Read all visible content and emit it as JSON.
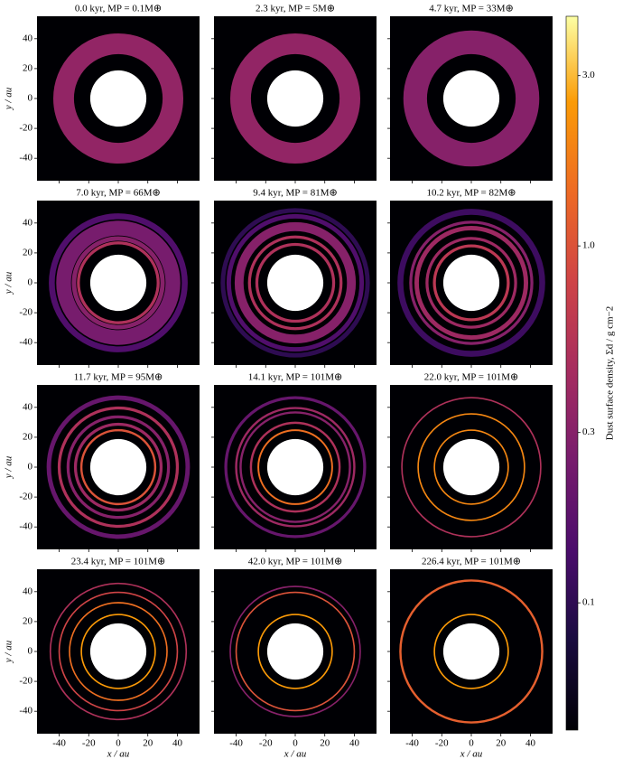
{
  "chart_data": [
    {
      "type": "image",
      "title": "0.0 kyr, MP = 0.1M⊕",
      "ylabel": "y / au",
      "xlim": [
        -55,
        55
      ],
      "ylim": [
        -55,
        55
      ],
      "xticks": [
        -40,
        -20,
        0,
        20,
        40
      ],
      "yticks": [
        -40,
        -20,
        0,
        20,
        40
      ],
      "hole_radius": 19,
      "rings": [
        {
          "r": 37,
          "width": 14,
          "density": 0.35
        }
      ]
    },
    {
      "type": "image",
      "title": "2.3 kyr, MP = 5M⊕",
      "xlim": [
        -55,
        55
      ],
      "ylim": [
        -55,
        55
      ],
      "xticks": [
        -40,
        -20,
        0,
        20,
        40
      ],
      "yticks": [
        -40,
        -20,
        0,
        20,
        40
      ],
      "hole_radius": 19,
      "rings": [
        {
          "r": 37,
          "width": 14,
          "density": 0.35
        }
      ]
    },
    {
      "type": "image",
      "title": "4.7 kyr, MP = 33M⊕",
      "xlim": [
        -55,
        55
      ],
      "ylim": [
        -55,
        55
      ],
      "xticks": [
        -40,
        -20,
        0,
        20,
        40
      ],
      "yticks": [
        -40,
        -20,
        0,
        20,
        40
      ],
      "hole_radius": 19,
      "rings": [
        {
          "r": 38,
          "width": 16,
          "density": 0.3
        }
      ]
    },
    {
      "type": "image",
      "title": "7.0 kyr, MP = 66M⊕",
      "ylabel": "y / au",
      "xlim": [
        -55,
        55
      ],
      "ylim": [
        -55,
        55
      ],
      "xticks": [
        -40,
        -20,
        0,
        20,
        40
      ],
      "yticks": [
        -40,
        -20,
        0,
        20,
        40
      ],
      "hole_radius": 19,
      "rings": [
        {
          "r": 37,
          "width": 10,
          "density": 0.25
        },
        {
          "r": 45,
          "width": 4,
          "density": 0.15
        },
        {
          "r": 30,
          "width": 3,
          "density": 0.3
        },
        {
          "r": 27,
          "width": 2,
          "density": 0.5
        }
      ]
    },
    {
      "type": "image",
      "title": "9.4 kyr, MP = 81M⊕",
      "xlim": [
        -55,
        55
      ],
      "ylim": [
        -55,
        55
      ],
      "xticks": [
        -40,
        -20,
        0,
        20,
        40
      ],
      "yticks": [
        -40,
        -20,
        0,
        20,
        40
      ],
      "hole_radius": 19,
      "rings": [
        {
          "r": 49,
          "width": 3,
          "density": 0.1
        },
        {
          "r": 45,
          "width": 3,
          "density": 0.15
        },
        {
          "r": 38,
          "width": 6,
          "density": 0.3
        },
        {
          "r": 31,
          "width": 2,
          "density": 0.5
        },
        {
          "r": 26,
          "width": 2,
          "density": 0.5
        }
      ]
    },
    {
      "type": "image",
      "title": "10.2 kyr, MP = 82M⊕",
      "xlim": [
        -55,
        55
      ],
      "ylim": [
        -55,
        55
      ],
      "xticks": [
        -40,
        -20,
        0,
        20,
        40
      ],
      "yticks": [
        -40,
        -20,
        0,
        20,
        40
      ],
      "hole_radius": 19,
      "rings": [
        {
          "r": 48,
          "width": 4,
          "density": 0.12
        },
        {
          "r": 41,
          "width": 2,
          "density": 0.3
        },
        {
          "r": 37,
          "width": 3,
          "density": 0.4
        },
        {
          "r": 30,
          "width": 2,
          "density": 0.4
        },
        {
          "r": 25,
          "width": 2,
          "density": 0.6
        }
      ]
    },
    {
      "type": "image",
      "title": "11.7 kyr, MP = 95M⊕",
      "ylabel": "y / au",
      "xlim": [
        -55,
        55
      ],
      "ylim": [
        -55,
        55
      ],
      "xticks": [
        -40,
        -20,
        0,
        20,
        40
      ],
      "yticks": [
        -40,
        -20,
        0,
        20,
        40
      ],
      "hole_radius": 19,
      "rings": [
        {
          "r": 47,
          "width": 3,
          "density": 0.2
        },
        {
          "r": 40,
          "width": 2,
          "density": 0.5
        },
        {
          "r": 34,
          "width": 2,
          "density": 0.3
        },
        {
          "r": 29,
          "width": 2,
          "density": 0.4
        },
        {
          "r": 25,
          "width": 1.5,
          "density": 1.0
        }
      ]
    },
    {
      "type": "image",
      "title": "14.1 kyr, MP = 101M⊕",
      "xlim": [
        -55,
        55
      ],
      "ylim": [
        -55,
        55
      ],
      "xticks": [
        -40,
        -20,
        0,
        20,
        40
      ],
      "yticks": [
        -40,
        -20,
        0,
        20,
        40
      ],
      "hole_radius": 19,
      "rings": [
        {
          "r": 47,
          "width": 2,
          "density": 0.2
        },
        {
          "r": 40,
          "width": 1.5,
          "density": 0.4
        },
        {
          "r": 37,
          "width": 1.5,
          "density": 0.3
        },
        {
          "r": 30,
          "width": 1.5,
          "density": 0.5
        },
        {
          "r": 25,
          "width": 1.2,
          "density": 1.5
        }
      ]
    },
    {
      "type": "image",
      "title": "22.0 kyr, MP = 101M⊕",
      "xlim": [
        -55,
        55
      ],
      "ylim": [
        -55,
        55
      ],
      "xticks": [
        -40,
        -20,
        0,
        20,
        40
      ],
      "yticks": [
        -40,
        -20,
        0,
        20,
        40
      ],
      "hole_radius": 19,
      "rings": [
        {
          "r": 47,
          "width": 1,
          "density": 0.5
        },
        {
          "r": 36,
          "width": 1,
          "density": 2
        },
        {
          "r": 25,
          "width": 1,
          "density": 2
        }
      ]
    },
    {
      "type": "image",
      "title": "23.4 kyr, MP = 101M⊕",
      "xlabel": "x / au",
      "ylabel": "y / au",
      "xlim": [
        -55,
        55
      ],
      "ylim": [
        -55,
        55
      ],
      "xticks": [
        -40,
        -20,
        0,
        20,
        40
      ],
      "yticks": [
        -40,
        -20,
        0,
        20,
        40
      ],
      "hole_radius": 19,
      "rings": [
        {
          "r": 46,
          "width": 1,
          "density": 0.5
        },
        {
          "r": 40,
          "width": 1,
          "density": 0.8
        },
        {
          "r": 33,
          "width": 1,
          "density": 1.5
        },
        {
          "r": 25,
          "width": 1,
          "density": 2.5
        }
      ]
    },
    {
      "type": "image",
      "title": "42.0 kyr, MP = 101M⊕",
      "xlabel": "x / au",
      "xlim": [
        -55,
        55
      ],
      "ylim": [
        -55,
        55
      ],
      "xticks": [
        -40,
        -20,
        0,
        20,
        40
      ],
      "yticks": [
        -40,
        -20,
        0,
        20,
        40
      ],
      "hole_radius": 19,
      "rings": [
        {
          "r": 44,
          "width": 1,
          "density": 0.3
        },
        {
          "r": 40,
          "width": 1,
          "density": 1
        },
        {
          "r": 25,
          "width": 1,
          "density": 2.5
        }
      ]
    },
    {
      "type": "image",
      "title": "226.4 kyr, MP = 101M⊕",
      "xlabel": "x / au",
      "xlim": [
        -55,
        55
      ],
      "ylim": [
        -55,
        55
      ],
      "xticks": [
        -40,
        -20,
        0,
        20,
        40
      ],
      "yticks": [
        -40,
        -20,
        0,
        20,
        40
      ],
      "hole_radius": 19,
      "rings": [
        {
          "r": 48,
          "width": 1.5,
          "density": 1.2
        },
        {
          "r": 25,
          "width": 1,
          "density": 2.5
        }
      ]
    },
    {
      "type": "colorbar",
      "label": "Dust surface density, Σd / g cm−2",
      "colormap": "inferno",
      "log": true,
      "ylim": [
        0.044,
        4.4
      ],
      "yticks": [
        0.1,
        0.3,
        {
          "value": 1,
          "label": "1.0"
        },
        {
          "value": 3,
          "label": "3.0"
        }
      ]
    }
  ]
}
